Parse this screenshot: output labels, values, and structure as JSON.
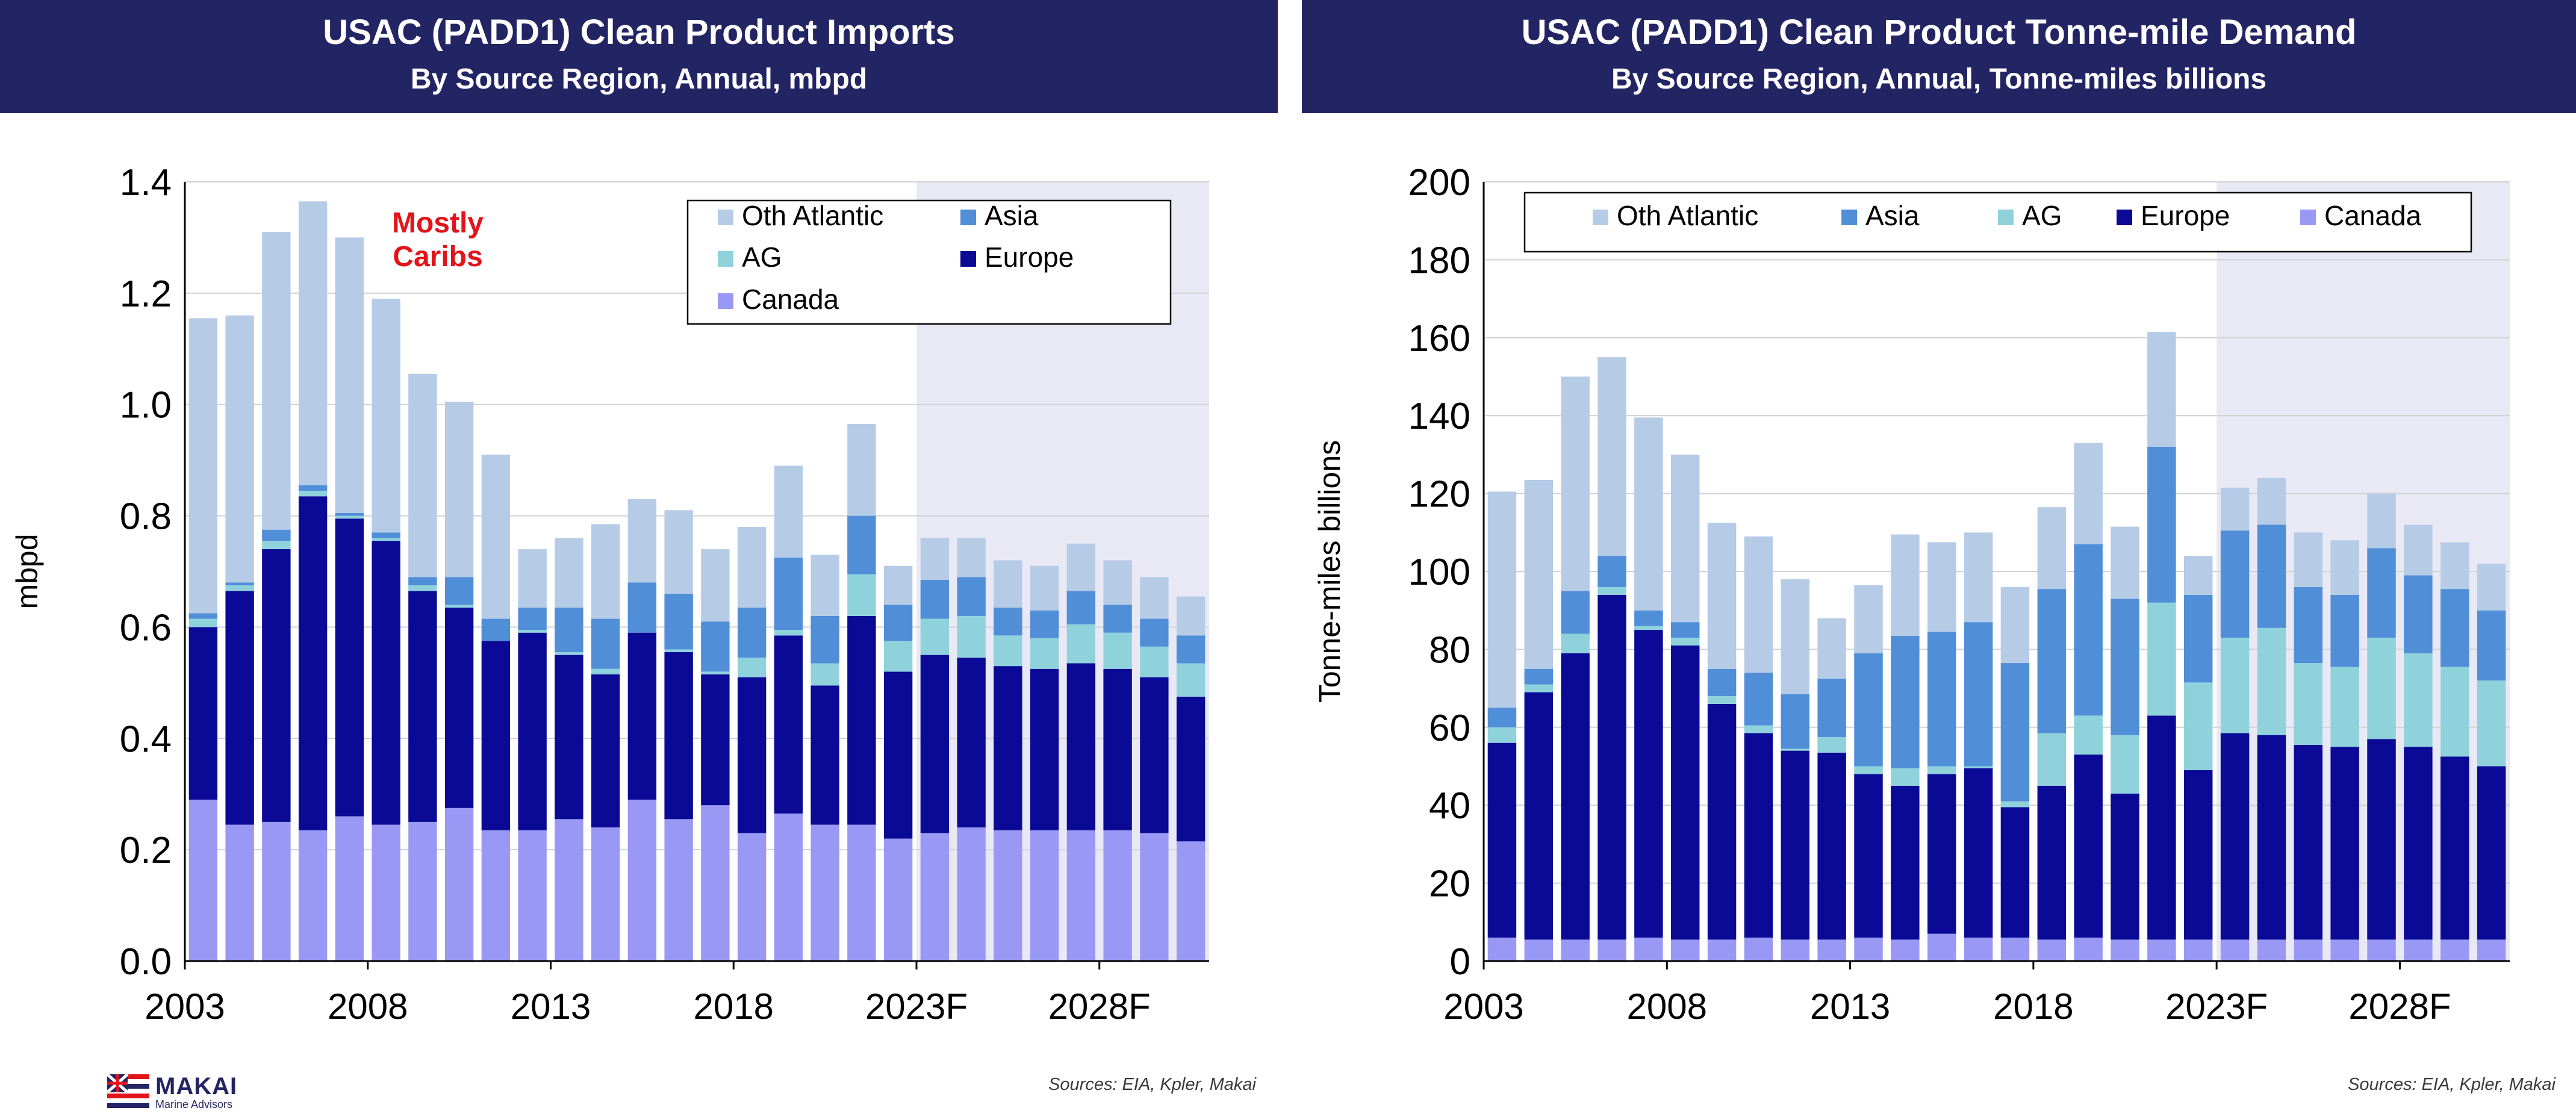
{
  "left_chart": {
    "title": "USAC (PADD1) Clean Product Imports",
    "subtitle": "By Source Region, Annual, mbpd",
    "annotation": [
      "Mostly",
      "Caribs"
    ],
    "source": "Sources: EIA, Kpler, Makai"
  },
  "right_chart": {
    "title": "USAC (PADD1) Clean Product Tonne-mile Demand",
    "subtitle": "By Source Region, Annual, Tonne-miles billions",
    "source": "Sources: EIA, Kpler, Makai"
  },
  "logo": {
    "name": "MAKAI",
    "tagline": "Marine Advisors"
  },
  "colors": {
    "Canada": "#9999f5",
    "Europe": "#0a0a96",
    "AG": "#8fd2dc",
    "Asia": "#508ed8",
    "Oth Atlantic": "#b6cbe6",
    "forecast_shade": "#e9e9f6",
    "banner": "#232463",
    "annotation": "#e2141a"
  },
  "chart_data": [
    {
      "type": "bar",
      "stacked": true,
      "title": "USAC (PADD1) Clean Product Imports",
      "subtitle": "By Source Region, Annual, mbpd",
      "ylabel": "mbpd",
      "xlabel": "",
      "ylim": [
        0,
        1.4
      ],
      "yticks": [
        "0.0",
        "0.2",
        "0.4",
        "0.6",
        "0.8",
        "1.0",
        "1.2",
        "1.4"
      ],
      "categories": [
        "2003",
        "2004",
        "2005",
        "2006",
        "2007",
        "2008",
        "2009",
        "2010",
        "2011",
        "2012",
        "2013",
        "2014",
        "2015",
        "2016",
        "2017",
        "2018",
        "2019",
        "2020",
        "2021",
        "2022",
        "2023F",
        "2024F",
        "2025F",
        "2026F",
        "2027F",
        "2028F",
        "2029F",
        "2030F"
      ],
      "xticklabels": [
        "2003",
        "2008",
        "2013",
        "2018",
        "2023F",
        "2028F"
      ],
      "forecast_start": "2023F",
      "grid": true,
      "legend": {
        "placement": "top-right",
        "entries": [
          "Oth Atlantic",
          "Asia",
          "AG",
          "Europe",
          "Canada"
        ]
      },
      "series": [
        {
          "name": "Canada",
          "values": [
            0.29,
            0.245,
            0.25,
            0.235,
            0.26,
            0.245,
            0.25,
            0.275,
            0.235,
            0.235,
            0.255,
            0.24,
            0.29,
            0.255,
            0.28,
            0.23,
            0.265,
            0.245,
            0.245,
            0.22,
            0.23,
            0.24,
            0.235,
            0.235,
            0.235,
            0.235,
            0.23,
            0.215
          ]
        },
        {
          "name": "Europe",
          "values": [
            0.31,
            0.42,
            0.49,
            0.6,
            0.535,
            0.51,
            0.415,
            0.36,
            0.34,
            0.355,
            0.295,
            0.275,
            0.3,
            0.3,
            0.235,
            0.28,
            0.32,
            0.25,
            0.375,
            0.3,
            0.32,
            0.305,
            0.295,
            0.29,
            0.3,
            0.29,
            0.28,
            0.26
          ]
        },
        {
          "name": "AG",
          "values": [
            0.015,
            0.01,
            0.015,
            0.01,
            0.005,
            0.005,
            0.01,
            0.005,
            0.0,
            0.005,
            0.005,
            0.01,
            0.0,
            0.005,
            0.005,
            0.035,
            0.01,
            0.04,
            0.075,
            0.055,
            0.065,
            0.075,
            0.055,
            0.055,
            0.07,
            0.065,
            0.055,
            0.06
          ]
        },
        {
          "name": "Asia",
          "values": [
            0.01,
            0.005,
            0.02,
            0.01,
            0.005,
            0.01,
            0.015,
            0.05,
            0.04,
            0.04,
            0.08,
            0.09,
            0.09,
            0.1,
            0.09,
            0.09,
            0.13,
            0.085,
            0.105,
            0.065,
            0.07,
            0.07,
            0.05,
            0.05,
            0.06,
            0.05,
            0.05,
            0.05
          ]
        },
        {
          "name": "Oth Atlantic",
          "values": [
            0.53,
            0.48,
            0.535,
            0.51,
            0.495,
            0.42,
            0.365,
            0.315,
            0.295,
            0.105,
            0.125,
            0.17,
            0.15,
            0.15,
            0.13,
            0.145,
            0.165,
            0.11,
            0.165,
            0.07,
            0.075,
            0.07,
            0.085,
            0.08,
            0.085,
            0.08,
            0.075,
            0.07
          ]
        }
      ]
    },
    {
      "type": "bar",
      "stacked": true,
      "title": "USAC (PADD1) Clean Product Tonne-mile Demand",
      "subtitle": "By Source Region, Annual, Tonne-miles billions",
      "ylabel": "Tonne-miles billions",
      "xlabel": "",
      "ylim": [
        0,
        200
      ],
      "yticks": [
        "0",
        "20",
        "40",
        "60",
        "80",
        "100",
        "120",
        "140",
        "160",
        "180",
        "200"
      ],
      "categories": [
        "2003",
        "2004",
        "2005",
        "2006",
        "2007",
        "2008",
        "2009",
        "2010",
        "2011",
        "2012",
        "2013",
        "2014",
        "2015",
        "2016",
        "2017",
        "2018",
        "2019",
        "2020",
        "2021",
        "2022",
        "2023F",
        "2024F",
        "2025F",
        "2026F",
        "2027F",
        "2028F",
        "2029F",
        "2030F"
      ],
      "xticklabels": [
        "2003",
        "2008",
        "2013",
        "2018",
        "2023F",
        "2028F"
      ],
      "forecast_start": "2023F",
      "grid": true,
      "legend": {
        "placement": "top",
        "entries": [
          "Oth Atlantic",
          "Asia",
          "AG",
          "Europe",
          "Canada"
        ]
      },
      "series": [
        {
          "name": "Canada",
          "values": [
            6,
            5.5,
            5.5,
            5.5,
            6,
            5.5,
            5.5,
            6,
            5.5,
            5.5,
            6,
            5.5,
            7,
            6,
            6,
            5.5,
            6,
            5.5,
            5.5,
            5.5,
            5.5,
            5.5,
            5.5,
            5.5,
            5.5,
            5.5,
            5.5,
            5.5
          ]
        },
        {
          "name": "Europe",
          "values": [
            50,
            63.5,
            73.5,
            88.5,
            79,
            75.5,
            60.5,
            52.5,
            48.5,
            48,
            42,
            39.5,
            41,
            43.5,
            33.5,
            39.5,
            47,
            37.5,
            57.5,
            43.5,
            53,
            52.5,
            50,
            49.5,
            51.5,
            49.5,
            47,
            44.5
          ]
        },
        {
          "name": "AG",
          "values": [
            4,
            2,
            5,
            2,
            1,
            2,
            2,
            2,
            0.5,
            4,
            2,
            4.5,
            2,
            0.5,
            1.5,
            13.5,
            10,
            15,
            29,
            22.5,
            24.5,
            27.5,
            21,
            20.5,
            26,
            24,
            23,
            22
          ]
        },
        {
          "name": "Asia",
          "values": [
            5,
            4,
            11,
            8,
            4,
            4,
            7,
            13.5,
            14,
            15,
            29,
            34,
            34.5,
            37,
            35.5,
            37,
            44,
            35,
            40,
            22.5,
            27.5,
            26.5,
            19.5,
            18.5,
            23,
            20,
            20,
            18
          ]
        },
        {
          "name": "Oth Atlantic",
          "values": [
            55.5,
            48.5,
            55,
            51,
            49.5,
            43,
            37.5,
            35,
            29.5,
            15.5,
            17.5,
            26,
            23,
            23,
            19.5,
            21,
            26,
            18.5,
            29.5,
            10,
            11,
            12,
            14,
            14,
            14,
            13,
            12,
            12
          ]
        }
      ]
    }
  ]
}
